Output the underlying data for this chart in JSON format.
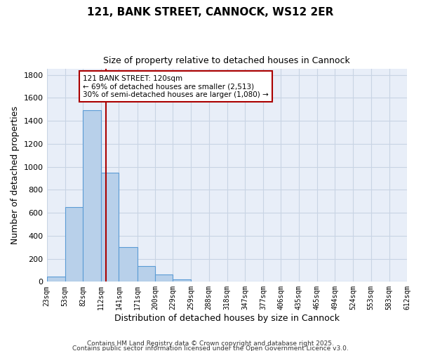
{
  "title": "121, BANK STREET, CANNOCK, WS12 2ER",
  "subtitle": "Size of property relative to detached houses in Cannock",
  "xlabel": "Distribution of detached houses by size in Cannock",
  "ylabel": "Number of detached properties",
  "bar_values": [
    45,
    650,
    1490,
    950,
    300,
    135,
    65,
    20,
    5,
    2,
    0,
    0,
    0,
    0,
    0,
    0,
    0,
    0,
    0,
    0
  ],
  "bin_edges": [
    23,
    53,
    82,
    112,
    141,
    171,
    200,
    229,
    259,
    288,
    318,
    347,
    377,
    406,
    435,
    465,
    494,
    524,
    553,
    583,
    612
  ],
  "tick_labels": [
    "23sqm",
    "53sqm",
    "82sqm",
    "112sqm",
    "141sqm",
    "171sqm",
    "200sqm",
    "229sqm",
    "259sqm",
    "288sqm",
    "318sqm",
    "347sqm",
    "377sqm",
    "406sqm",
    "435sqm",
    "465sqm",
    "494sqm",
    "524sqm",
    "553sqm",
    "583sqm",
    "612sqm"
  ],
  "bar_color": "#b8d0ea",
  "bar_edge_color": "#5b9bd5",
  "grid_color": "#c8d4e4",
  "background_color": "#e8eef8",
  "vline_x": 120,
  "vline_color": "#aa0000",
  "annotation_text": "121 BANK STREET: 120sqm\n← 69% of detached houses are smaller (2,513)\n30% of semi-detached houses are larger (1,080) →",
  "annotation_box_color": "#ffffff",
  "annotation_box_edge_color": "#aa0000",
  "ylim": [
    0,
    1850
  ],
  "yticks": [
    0,
    200,
    400,
    600,
    800,
    1000,
    1200,
    1400,
    1600,
    1800
  ],
  "footer1": "Contains HM Land Registry data © Crown copyright and database right 2025.",
  "footer2": "Contains public sector information licensed under the Open Government Licence v3.0."
}
